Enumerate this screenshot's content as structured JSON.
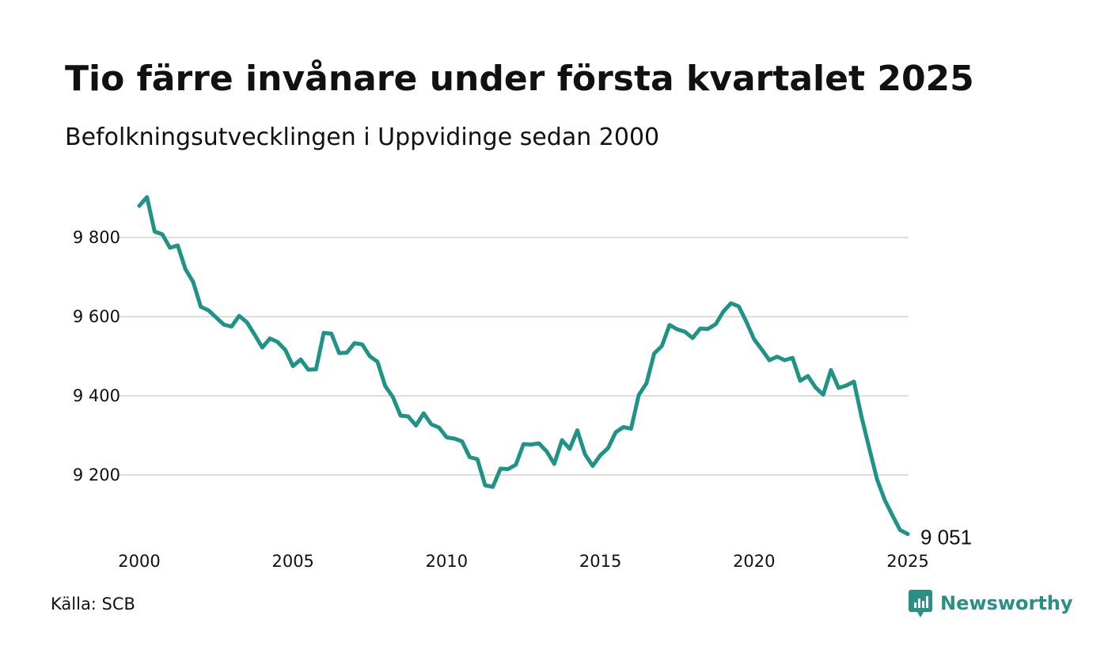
{
  "title": "Tio färre invånare under första kvartalet 2025",
  "subtitle": "Befolkningsutvecklingen i Uppvidinge sedan 2000",
  "source": "Källa: SCB",
  "brand": {
    "name": "Newsworthy",
    "logo_icon": "chart-speech-bubble-icon",
    "color": "#2a8f84"
  },
  "chart_data": {
    "type": "line",
    "title": "",
    "xlabel": "",
    "ylabel": "",
    "grid": "horizontal",
    "legend": "none",
    "line_color": "#1f9385",
    "grid_color": "#dedede",
    "xlim": [
      2000,
      2025
    ],
    "ylim": [
      9020,
      9920
    ],
    "x_ticks": [
      2000,
      2005,
      2010,
      2015,
      2020,
      2025
    ],
    "x_tick_labels": [
      "2000",
      "2005",
      "2010",
      "2015",
      "2020",
      "2025"
    ],
    "y_ticks": [
      9200,
      9400,
      9600,
      9800
    ],
    "y_tick_labels": [
      "9 200",
      "9 400",
      "9 600",
      "9 800"
    ],
    "end_label": "9 051",
    "series": [
      {
        "x": [
          2000.0,
          2000.25,
          2000.5,
          2000.75,
          2001.0,
          2001.25,
          2001.5,
          2001.75,
          2002.0,
          2002.25,
          2002.5,
          2002.75,
          2003.0,
          2003.25,
          2003.5,
          2003.75,
          2004.0,
          2004.25,
          2004.5,
          2004.75,
          2005.0,
          2005.25,
          2005.5,
          2005.75,
          2006.0,
          2006.25,
          2006.5,
          2006.75,
          2007.0,
          2007.25,
          2007.5,
          2007.75,
          2008.0,
          2008.25,
          2008.5,
          2008.75,
          2009.0,
          2009.25,
          2009.5,
          2009.75,
          2010.0,
          2010.25,
          2010.5,
          2010.75,
          2011.0,
          2011.25,
          2011.5,
          2011.75,
          2012.0,
          2012.25,
          2012.5,
          2012.75,
          2013.0,
          2013.25,
          2013.5,
          2013.75,
          2014.0,
          2014.25,
          2014.5,
          2014.75,
          2015.0,
          2015.25,
          2015.5,
          2015.75,
          2016.0,
          2016.25,
          2016.5,
          2016.75,
          2017.0,
          2017.25,
          2017.5,
          2017.75,
          2018.0,
          2018.25,
          2018.5,
          2018.75,
          2019.0,
          2019.25,
          2019.5,
          2019.75,
          2020.0,
          2020.25,
          2020.5,
          2020.75,
          2021.0,
          2021.25,
          2021.5,
          2021.75,
          2022.0,
          2022.25,
          2022.5,
          2022.75,
          2023.0,
          2023.25,
          2023.5,
          2023.75,
          2024.0,
          2024.25,
          2024.5,
          2024.75,
          2025.0
        ],
        "values": [
          9880,
          9902,
          9815,
          9808,
          9774,
          9780,
          9720,
          9688,
          9625,
          9616,
          9598,
          9580,
          9575,
          9602,
          9586,
          9555,
          9522,
          9545,
          9536,
          9516,
          9475,
          9492,
          9466,
          9467,
          9559,
          9557,
          9508,
          9509,
          9533,
          9530,
          9500,
          9486,
          9425,
          9397,
          9350,
          9348,
          9325,
          9356,
          9328,
          9320,
          9295,
          9292,
          9285,
          9245,
          9240,
          9174,
          9170,
          9216,
          9215,
          9226,
          9278,
          9277,
          9280,
          9260,
          9228,
          9288,
          9266,
          9313,
          9252,
          9223,
          9250,
          9268,
          9308,
          9321,
          9317,
          9402,
          9432,
          9507,
          9526,
          9579,
          9568,
          9562,
          9546,
          9570,
          9569,
          9581,
          9613,
          9634,
          9626,
          9587,
          9543,
          9517,
          9490,
          9499,
          9490,
          9496,
          9438,
          9450,
          9421,
          9403,
          9465,
          9420,
          9426,
          9436,
          9346,
          9267,
          9189,
          9137,
          9098,
          9061,
          9051
        ]
      }
    ]
  }
}
